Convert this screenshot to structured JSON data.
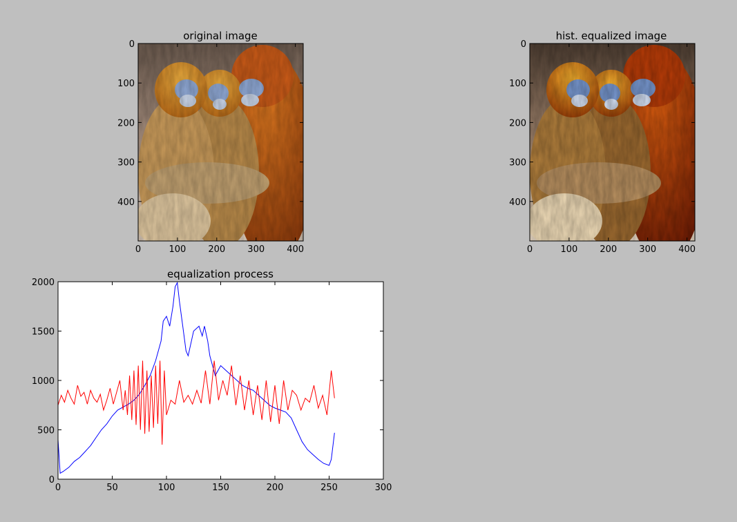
{
  "chart_data": [
    {
      "type": "image",
      "title": "original image",
      "image_description_tag": "golden-snub-nosed-monkeys",
      "xlim": [
        0,
        420
      ],
      "ylim": [
        500,
        0
      ],
      "xticks": [
        0,
        100,
        200,
        300,
        400
      ],
      "yticks": [
        0,
        100,
        200,
        300,
        400
      ]
    },
    {
      "type": "image",
      "title": "hist. equalized image",
      "image_description_tag": "golden-snub-nosed-monkeys-equalized",
      "xlim": [
        0,
        420
      ],
      "ylim": [
        500,
        0
      ],
      "xticks": [
        0,
        100,
        200,
        300,
        400
      ],
      "yticks": [
        0,
        100,
        200,
        300,
        400
      ]
    },
    {
      "type": "line",
      "title": "equalization process",
      "xlim": [
        0,
        300
      ],
      "ylim": [
        0,
        2000
      ],
      "xticks": [
        0,
        50,
        100,
        150,
        200,
        250,
        300
      ],
      "yticks": [
        0,
        500,
        1000,
        1500,
        2000
      ],
      "series": [
        {
          "color": "#0000ff",
          "x": [
            0,
            2,
            5,
            10,
            15,
            20,
            25,
            30,
            35,
            40,
            45,
            50,
            55,
            60,
            65,
            70,
            75,
            80,
            85,
            90,
            95,
            97,
            100,
            103,
            106,
            108,
            110,
            112,
            115,
            118,
            120,
            125,
            130,
            133,
            135,
            138,
            140,
            145,
            150,
            155,
            160,
            165,
            170,
            175,
            180,
            185,
            190,
            195,
            200,
            205,
            210,
            215,
            220,
            225,
            230,
            235,
            240,
            245,
            250,
            252,
            255
          ],
          "y": [
            400,
            60,
            80,
            120,
            180,
            220,
            280,
            340,
            420,
            500,
            560,
            640,
            700,
            730,
            760,
            800,
            860,
            950,
            1050,
            1200,
            1400,
            1600,
            1650,
            1550,
            1750,
            1950,
            1990,
            1800,
            1550,
            1300,
            1250,
            1500,
            1550,
            1450,
            1550,
            1400,
            1250,
            1050,
            1150,
            1100,
            1050,
            1000,
            950,
            920,
            900,
            850,
            800,
            750,
            720,
            700,
            680,
            620,
            500,
            380,
            300,
            250,
            200,
            160,
            140,
            200,
            470
          ]
        },
        {
          "color": "#ff0000",
          "x": [
            0,
            3,
            6,
            9,
            12,
            15,
            18,
            21,
            24,
            27,
            30,
            33,
            36,
            39,
            42,
            45,
            48,
            51,
            54,
            57,
            60,
            62,
            64,
            66,
            68,
            70,
            72,
            74,
            76,
            78,
            80,
            82,
            84,
            86,
            88,
            90,
            92,
            94,
            96,
            98,
            100,
            104,
            108,
            112,
            116,
            120,
            124,
            128,
            132,
            136,
            140,
            144,
            148,
            152,
            156,
            160,
            164,
            168,
            172,
            176,
            180,
            184,
            188,
            192,
            196,
            200,
            204,
            208,
            212,
            216,
            220,
            224,
            228,
            232,
            236,
            240,
            244,
            248,
            252,
            255
          ],
          "y": [
            750,
            850,
            780,
            900,
            820,
            760,
            950,
            840,
            880,
            760,
            900,
            820,
            780,
            860,
            700,
            800,
            920,
            760,
            880,
            1000,
            700,
            900,
            650,
            1050,
            600,
            1100,
            550,
            1150,
            500,
            1200,
            460,
            1100,
            480,
            1050,
            520,
            1150,
            560,
            1200,
            350,
            1100,
            650,
            800,
            760,
            1000,
            780,
            850,
            760,
            900,
            770,
            1100,
            760,
            1200,
            800,
            1000,
            850,
            1150,
            750,
            1050,
            700,
            1000,
            650,
            950,
            600,
            1000,
            580,
            950,
            560,
            1000,
            700,
            900,
            850,
            700,
            820,
            780,
            950,
            720,
            850,
            650,
            1100,
            820
          ]
        }
      ]
    }
  ]
}
